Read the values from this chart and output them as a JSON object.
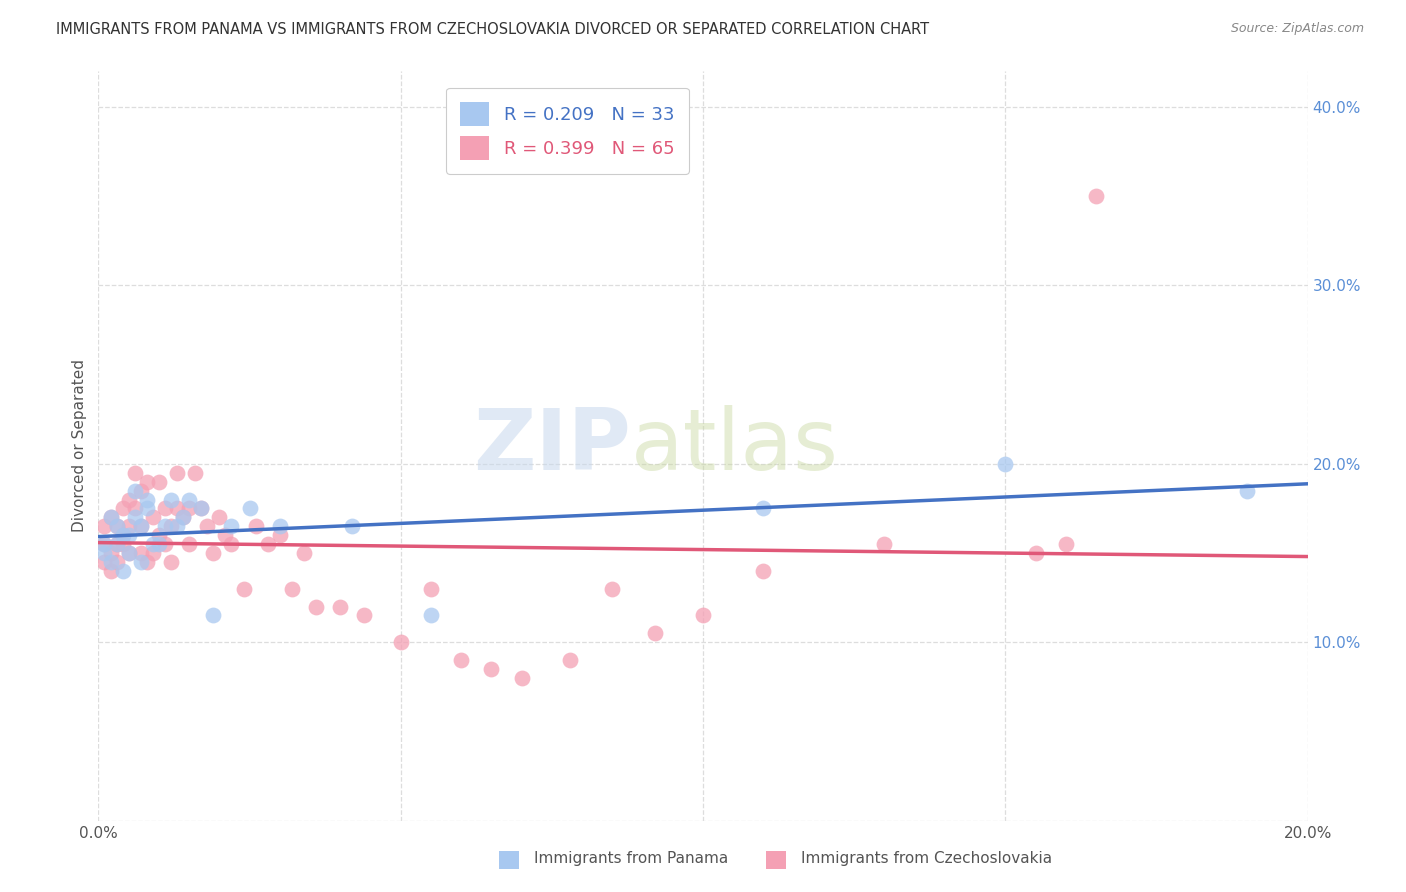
{
  "title": "IMMIGRANTS FROM PANAMA VS IMMIGRANTS FROM CZECHOSLOVAKIA DIVORCED OR SEPARATED CORRELATION CHART",
  "source": "Source: ZipAtlas.com",
  "ylabel_label": "Divorced or Separated",
  "xlim": [
    0.0,
    0.2
  ],
  "ylim": [
    0.0,
    0.42
  ],
  "xticks": [
    0.0,
    0.05,
    0.1,
    0.15,
    0.2
  ],
  "yticks": [
    0.0,
    0.1,
    0.2,
    0.3,
    0.4
  ],
  "watermark_zip": "ZIP",
  "watermark_atlas": "atlas",
  "background_color": "#ffffff",
  "grid_color": "#dddddd",
  "title_fontsize": 10.5,
  "axis_label_fontsize": 11,
  "tick_fontsize": 11,
  "legend_fontsize": 13,
  "series_blue": {
    "name": "Immigrants from Panama",
    "color": "#a8c8f0",
    "line_color": "#4472c4",
    "R": 0.209,
    "N": 33,
    "x": [
      0.001,
      0.001,
      0.002,
      0.002,
      0.003,
      0.003,
      0.004,
      0.004,
      0.005,
      0.005,
      0.006,
      0.006,
      0.007,
      0.007,
      0.008,
      0.008,
      0.009,
      0.01,
      0.011,
      0.012,
      0.013,
      0.014,
      0.015,
      0.017,
      0.019,
      0.022,
      0.025,
      0.03,
      0.042,
      0.055,
      0.11,
      0.15,
      0.19
    ],
    "y": [
      0.15,
      0.155,
      0.145,
      0.17,
      0.165,
      0.155,
      0.14,
      0.16,
      0.15,
      0.16,
      0.17,
      0.185,
      0.145,
      0.165,
      0.18,
      0.175,
      0.155,
      0.155,
      0.165,
      0.18,
      0.165,
      0.17,
      0.18,
      0.175,
      0.115,
      0.165,
      0.175,
      0.165,
      0.165,
      0.115,
      0.175,
      0.2,
      0.185
    ]
  },
  "series_pink": {
    "name": "Immigrants from Czechoslovakia",
    "color": "#f4a0b4",
    "line_color": "#e05878",
    "R": 0.399,
    "N": 65,
    "x": [
      0.001,
      0.001,
      0.001,
      0.002,
      0.002,
      0.002,
      0.003,
      0.003,
      0.003,
      0.004,
      0.004,
      0.004,
      0.005,
      0.005,
      0.005,
      0.006,
      0.006,
      0.007,
      0.007,
      0.007,
      0.008,
      0.008,
      0.009,
      0.009,
      0.01,
      0.01,
      0.011,
      0.011,
      0.012,
      0.012,
      0.013,
      0.013,
      0.014,
      0.015,
      0.015,
      0.016,
      0.017,
      0.018,
      0.019,
      0.02,
      0.021,
      0.022,
      0.024,
      0.026,
      0.028,
      0.03,
      0.032,
      0.034,
      0.036,
      0.04,
      0.044,
      0.05,
      0.055,
      0.06,
      0.065,
      0.07,
      0.078,
      0.085,
      0.092,
      0.1,
      0.11,
      0.13,
      0.155,
      0.16,
      0.165
    ],
    "y": [
      0.145,
      0.155,
      0.165,
      0.15,
      0.17,
      0.14,
      0.155,
      0.165,
      0.145,
      0.16,
      0.175,
      0.155,
      0.18,
      0.165,
      0.15,
      0.175,
      0.195,
      0.15,
      0.165,
      0.185,
      0.145,
      0.19,
      0.17,
      0.15,
      0.16,
      0.19,
      0.175,
      0.155,
      0.165,
      0.145,
      0.195,
      0.175,
      0.17,
      0.155,
      0.175,
      0.195,
      0.175,
      0.165,
      0.15,
      0.17,
      0.16,
      0.155,
      0.13,
      0.165,
      0.155,
      0.16,
      0.13,
      0.15,
      0.12,
      0.12,
      0.115,
      0.1,
      0.13,
      0.09,
      0.085,
      0.08,
      0.09,
      0.13,
      0.105,
      0.115,
      0.14,
      0.155,
      0.15,
      0.155,
      0.35
    ]
  }
}
